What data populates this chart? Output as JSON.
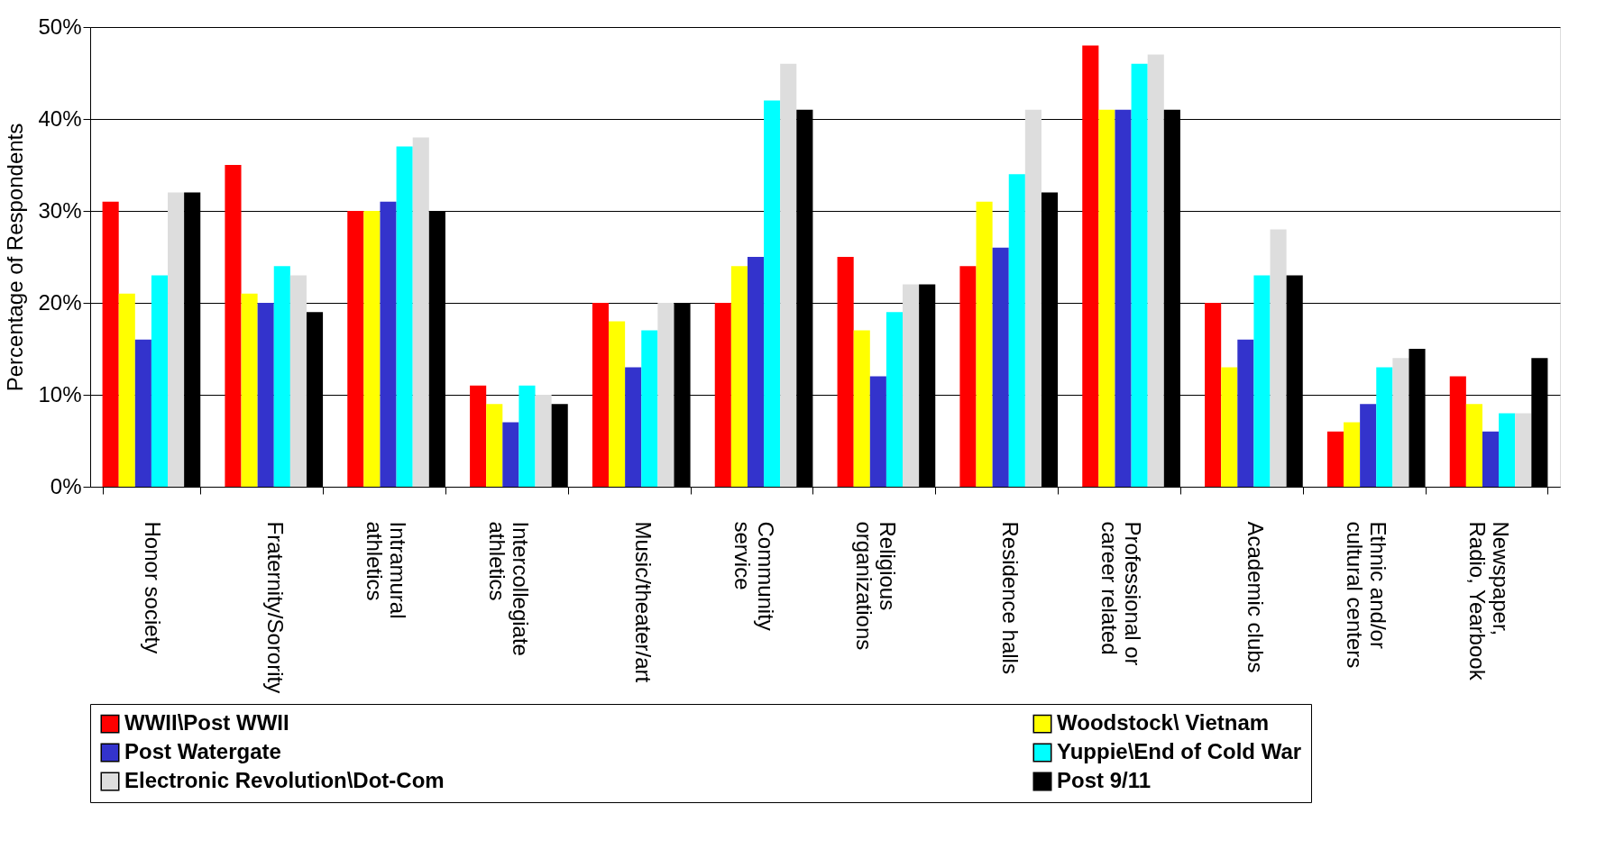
{
  "chart_data": {
    "type": "bar",
    "ylabel": "Percentage of Respondents",
    "categories": [
      "Honor society",
      "Fraternity/Sorority",
      "Intramural\nathletics",
      "Intercollegiate\nathletics",
      "Music/theater/art",
      "Community\nservice",
      "Religious\norganizations",
      "Residence halls",
      "Professional or\ncareer related",
      "Academic clubs",
      "Ethnic and/or\ncultural centers",
      "Newspaper,\nRadio, Yearbook"
    ],
    "series": [
      {
        "name": "WWII\\Post WWII",
        "color": "#ff0000",
        "values": [
          31,
          35,
          30,
          11,
          20,
          20,
          25,
          24,
          48,
          20,
          6,
          12
        ]
      },
      {
        "name": "Woodstock\\ Vietnam",
        "color": "#ffff00",
        "values": [
          21,
          21,
          30,
          9,
          18,
          24,
          17,
          31,
          41,
          13,
          7,
          9
        ]
      },
      {
        "name": "Post Watergate",
        "color": "#3333cc",
        "values": [
          16,
          20,
          31,
          7,
          13,
          25,
          12,
          26,
          41,
          16,
          9,
          6
        ]
      },
      {
        "name": "Yuppie\\End of Cold War",
        "color": "#00ffff",
        "values": [
          23,
          24,
          37,
          11,
          17,
          42,
          19,
          34,
          46,
          23,
          13,
          8
        ]
      },
      {
        "name": "Electronic Revolution\\Dot-Com",
        "color": "#dddddd",
        "values": [
          32,
          23,
          38,
          10,
          20,
          46,
          22,
          41,
          47,
          28,
          14,
          8
        ]
      },
      {
        "name": "Post 9/11",
        "color": "#000000",
        "values": [
          32,
          19,
          30,
          9,
          20,
          41,
          22,
          32,
          41,
          23,
          15,
          14
        ]
      }
    ],
    "ylim": [
      0,
      50
    ],
    "yticks": [
      {
        "value": 0,
        "label": "0%"
      },
      {
        "value": 10,
        "label": "10%"
      },
      {
        "value": 20,
        "label": "20%"
      },
      {
        "value": 30,
        "label": "30%"
      },
      {
        "value": 40,
        "label": "40%"
      },
      {
        "value": 50,
        "label": "50%"
      }
    ],
    "grid": "y",
    "legend": "bottom"
  }
}
